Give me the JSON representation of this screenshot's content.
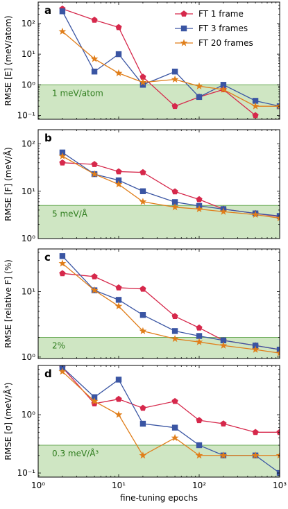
{
  "chart_data": [
    {
      "panel": "a",
      "type": "line",
      "ylabel": "RMSE [E] (meV/atom)",
      "xscale": "log",
      "yscale": "log",
      "xlim": [
        1,
        1000
      ],
      "ylim": [
        0.075,
        500
      ],
      "yticks": [
        0.1,
        1,
        10,
        100
      ],
      "ytick_labels": [
        "10⁻¹",
        "10⁰",
        "10¹",
        "10²"
      ],
      "threshold": {
        "value": 1,
        "label": "1 meV/atom"
      },
      "series": [
        {
          "name": "FT 1 frame",
          "x": [
            2,
            5,
            10,
            20,
            50,
            100,
            200,
            500,
            1000
          ],
          "y": [
            300,
            130,
            75,
            1.8,
            0.2,
            0.4,
            0.7,
            0.1,
            null
          ]
        },
        {
          "name": "FT 3 frames",
          "x": [
            2,
            5,
            10,
            20,
            50,
            100,
            200,
            500,
            1000
          ],
          "y": [
            250,
            2.7,
            10,
            1.0,
            2.7,
            0.4,
            1.0,
            0.3,
            0.2
          ]
        },
        {
          "name": "FT 20 frames",
          "x": [
            2,
            5,
            10,
            20,
            50,
            100,
            200,
            500,
            1000
          ],
          "y": [
            55,
            7,
            2.4,
            1.2,
            1.5,
            0.9,
            0.7,
            0.2,
            0.2
          ]
        }
      ]
    },
    {
      "panel": "b",
      "type": "line",
      "ylabel": "RMSE [F] (meV/Å)",
      "xscale": "log",
      "yscale": "log",
      "xlim": [
        1,
        1000
      ],
      "ylim": [
        1,
        200
      ],
      "yticks": [
        1,
        10,
        100
      ],
      "ytick_labels": [
        "10⁰",
        "10¹",
        "10²"
      ],
      "threshold": {
        "value": 5,
        "label": "5 meV/Å"
      },
      "series": [
        {
          "name": "FT 1 frame",
          "x": [
            2,
            5,
            10,
            20,
            50,
            100,
            200,
            500,
            1000
          ],
          "y": [
            40,
            37,
            26,
            25,
            9.8,
            6.7,
            4.2,
            3.4,
            2.9
          ]
        },
        {
          "name": "FT 3 frames",
          "x": [
            2,
            5,
            10,
            20,
            50,
            100,
            200,
            500,
            1000
          ],
          "y": [
            66,
            23,
            17,
            10,
            5.9,
            4.9,
            4.2,
            3.4,
            3.0
          ]
        },
        {
          "name": "FT 20 frames",
          "x": [
            2,
            5,
            10,
            20,
            50,
            100,
            200,
            500,
            1000
          ],
          "y": [
            55,
            23,
            14,
            6.0,
            4.6,
            4.2,
            3.7,
            3.2,
            2.7
          ]
        }
      ]
    },
    {
      "panel": "c",
      "type": "line",
      "ylabel": "RMSE [relative F] (%)",
      "xscale": "log",
      "yscale": "log",
      "xlim": [
        1,
        1000
      ],
      "ylim": [
        0.95,
        45
      ],
      "yticks": [
        1,
        10
      ],
      "ytick_labels": [
        "10⁰",
        "10¹"
      ],
      "threshold": {
        "value": 2,
        "label": "2%"
      },
      "series": [
        {
          "name": "FT 1 frame",
          "x": [
            2,
            5,
            10,
            20,
            50,
            100,
            200,
            500,
            1000
          ],
          "y": [
            19,
            17,
            11.5,
            11,
            4.2,
            2.8,
            1.8,
            1.5,
            1.3
          ]
        },
        {
          "name": "FT 3 frames",
          "x": [
            2,
            5,
            10,
            20,
            50,
            100,
            200,
            500,
            1000
          ],
          "y": [
            35,
            10.5,
            7.5,
            4.4,
            2.5,
            2.1,
            1.8,
            1.5,
            1.3
          ]
        },
        {
          "name": "FT 20 frames",
          "x": [
            2,
            5,
            10,
            20,
            50,
            100,
            200,
            500,
            1000
          ],
          "y": [
            27,
            10.5,
            6,
            2.5,
            1.9,
            1.7,
            1.5,
            1.3,
            1.15
          ]
        }
      ]
    },
    {
      "panel": "d",
      "type": "line",
      "ylabel": "RMSE [σ] (meV/Å³)",
      "xlabel": "fine-tuning epochs",
      "xscale": "log",
      "yscale": "log",
      "xlim": [
        1,
        1000
      ],
      "ylim": [
        0.085,
        7
      ],
      "yticks": [
        0.1,
        1
      ],
      "ytick_labels": [
        "10⁻¹",
        "10⁰"
      ],
      "xticks": [
        1,
        10,
        100,
        1000
      ],
      "xtick_labels": [
        "10⁰",
        "10¹",
        "10²",
        "10³"
      ],
      "threshold": {
        "value": 0.3,
        "label": "0.3 meV/Å³"
      },
      "series": [
        {
          "name": "FT 1 frame",
          "x": [
            2,
            5,
            10,
            20,
            50,
            100,
            200,
            500,
            1000
          ],
          "y": [
            6.5,
            1.55,
            1.85,
            1.3,
            1.7,
            0.8,
            0.7,
            0.5,
            0.5
          ]
        },
        {
          "name": "FT 3 frames",
          "x": [
            2,
            5,
            10,
            20,
            50,
            100,
            200,
            500,
            1000
          ],
          "y": [
            6.5,
            2.0,
            4.0,
            0.7,
            0.6,
            0.3,
            0.2,
            0.2,
            0.1
          ]
        },
        {
          "name": "FT 20 frames",
          "x": [
            2,
            5,
            10,
            20,
            50,
            100,
            200,
            500,
            1000
          ],
          "y": [
            5.5,
            1.7,
            1.0,
            0.2,
            0.4,
            0.2,
            0.2,
            0.2,
            0.2
          ]
        }
      ]
    }
  ],
  "legend": {
    "placement": "top-right of panel a",
    "entries": [
      {
        "name": "FT 1 frame",
        "marker": "pentagon",
        "color": "#d6284b"
      },
      {
        "name": "FT 3 frames",
        "marker": "square",
        "color": "#3a55a3"
      },
      {
        "name": "FT 20 frames",
        "marker": "star",
        "color": "#e07e1a"
      }
    ]
  },
  "colors": {
    "band_fill": "#cfe6c3",
    "band_line": "#6bab58",
    "band_text": "#2f7d1e"
  }
}
